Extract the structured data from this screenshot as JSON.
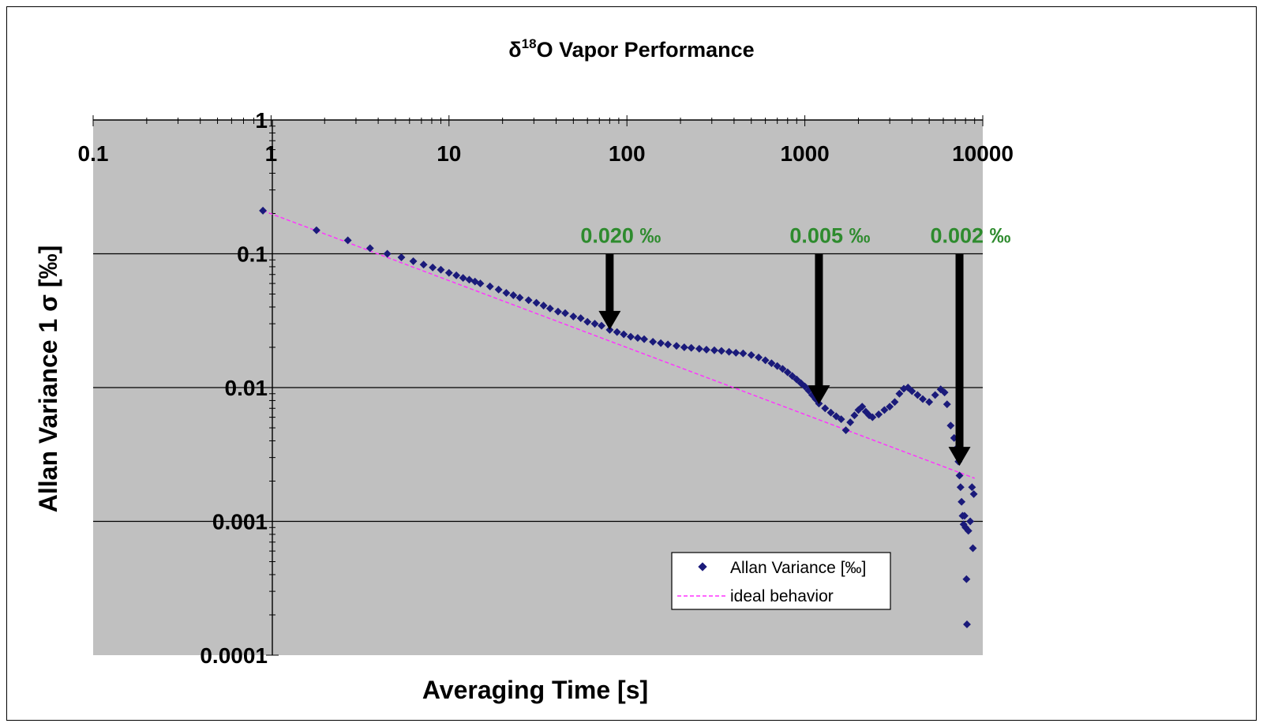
{
  "chart_data": {
    "type": "scatter",
    "title": {
      "prefix": "δ",
      "superscript": "18",
      "suffix": "O Vapor Performance"
    },
    "xlabel": "Averaging Time [s]",
    "ylabel": "Allan Variance 1 σ [‰]",
    "x_scale": "log",
    "y_scale": "log",
    "xlim": [
      0.1,
      10000
    ],
    "ylim": [
      0.0001,
      1
    ],
    "x_ticks": [
      {
        "value": 0.1,
        "label": "0.1"
      },
      {
        "value": 1,
        "label": "1"
      },
      {
        "value": 10,
        "label": "10"
      },
      {
        "value": 100,
        "label": "100"
      },
      {
        "value": 1000,
        "label": "1000"
      },
      {
        "value": 10000,
        "label": "10000"
      }
    ],
    "y_ticks": [
      {
        "value": 1,
        "label": "1"
      },
      {
        "value": 0.1,
        "label": "0.1"
      },
      {
        "value": 0.01,
        "label": "0.01"
      },
      {
        "value": 0.001,
        "label": "0.001"
      },
      {
        "value": 0.0001,
        "label": "0.0001"
      }
    ],
    "grid": "horizontal major",
    "plot_background": "#c0c0c0",
    "legend_position": "bottom-right",
    "series": [
      {
        "name": "Allan Variance [‰]",
        "kind": "scatter",
        "marker": "diamond",
        "color": "#1a1a7a",
        "points": [
          [
            0.9,
            0.21
          ],
          [
            1.8,
            0.15
          ],
          [
            2.7,
            0.126
          ],
          [
            3.6,
            0.11
          ],
          [
            4.5,
            0.1
          ],
          [
            5.4,
            0.094
          ],
          [
            6.3,
            0.088
          ],
          [
            7.2,
            0.083
          ],
          [
            8.1,
            0.079
          ],
          [
            9.0,
            0.076
          ],
          [
            10,
            0.072
          ],
          [
            11,
            0.069
          ],
          [
            12,
            0.066
          ],
          [
            13,
            0.064
          ],
          [
            14,
            0.062
          ],
          [
            15,
            0.06
          ],
          [
            17,
            0.057
          ],
          [
            19,
            0.054
          ],
          [
            21,
            0.051
          ],
          [
            23,
            0.049
          ],
          [
            25,
            0.047
          ],
          [
            28,
            0.045
          ],
          [
            31,
            0.043
          ],
          [
            34,
            0.041
          ],
          [
            37,
            0.039
          ],
          [
            41,
            0.037
          ],
          [
            45,
            0.036
          ],
          [
            50,
            0.034
          ],
          [
            55,
            0.033
          ],
          [
            60,
            0.031
          ],
          [
            66,
            0.03
          ],
          [
            72,
            0.029
          ],
          [
            80,
            0.027
          ],
          [
            88,
            0.026
          ],
          [
            96,
            0.025
          ],
          [
            105,
            0.024
          ],
          [
            115,
            0.0235
          ],
          [
            125,
            0.023
          ],
          [
            140,
            0.022
          ],
          [
            155,
            0.0215
          ],
          [
            170,
            0.021
          ],
          [
            190,
            0.0205
          ],
          [
            210,
            0.02
          ],
          [
            230,
            0.0198
          ],
          [
            255,
            0.0195
          ],
          [
            280,
            0.0192
          ],
          [
            310,
            0.019
          ],
          [
            340,
            0.0188
          ],
          [
            375,
            0.0185
          ],
          [
            410,
            0.0182
          ],
          [
            450,
            0.018
          ],
          [
            500,
            0.0175
          ],
          [
            550,
            0.0168
          ],
          [
            600,
            0.016
          ],
          [
            650,
            0.0152
          ],
          [
            700,
            0.0145
          ],
          [
            750,
            0.0138
          ],
          [
            800,
            0.013
          ],
          [
            850,
            0.0122
          ],
          [
            900,
            0.0115
          ],
          [
            950,
            0.0108
          ],
          [
            1000,
            0.0102
          ],
          [
            1050,
            0.0095
          ],
          [
            1100,
            0.0088
          ],
          [
            1150,
            0.0082
          ],
          [
            1200,
            0.0076
          ],
          [
            1300,
            0.007
          ],
          [
            1400,
            0.0065
          ],
          [
            1500,
            0.0061
          ],
          [
            1600,
            0.0058
          ],
          [
            1700,
            0.0048
          ],
          [
            1800,
            0.0055
          ],
          [
            1900,
            0.0062
          ],
          [
            2000,
            0.0068
          ],
          [
            2100,
            0.0072
          ],
          [
            2200,
            0.0066
          ],
          [
            2300,
            0.0062
          ],
          [
            2400,
            0.006
          ],
          [
            2600,
            0.0063
          ],
          [
            2800,
            0.0068
          ],
          [
            3000,
            0.0072
          ],
          [
            3200,
            0.0078
          ],
          [
            3400,
            0.009
          ],
          [
            3600,
            0.0098
          ],
          [
            3800,
            0.01
          ],
          [
            4000,
            0.0094
          ],
          [
            4300,
            0.0088
          ],
          [
            4600,
            0.0082
          ],
          [
            5000,
            0.0078
          ],
          [
            5400,
            0.0088
          ],
          [
            5800,
            0.0097
          ],
          [
            6100,
            0.0092
          ],
          [
            6300,
            0.0075
          ],
          [
            6600,
            0.0052
          ],
          [
            6900,
            0.0042
          ],
          [
            7100,
            0.0035
          ],
          [
            7300,
            0.0028
          ],
          [
            7400,
            0.0022
          ],
          [
            7500,
            0.0018
          ],
          [
            7600,
            0.0014
          ],
          [
            7700,
            0.0011
          ],
          [
            7800,
            0.00095
          ],
          [
            7900,
            0.0011
          ],
          [
            8000,
            0.0009
          ],
          [
            8100,
            0.00037
          ],
          [
            8150,
            0.00017
          ],
          [
            8300,
            0.00085
          ],
          [
            8500,
            0.001
          ],
          [
            8700,
            0.0018
          ],
          [
            8800,
            0.00063
          ],
          [
            8900,
            0.0016
          ]
        ]
      },
      {
        "name": "ideal behavior",
        "kind": "line",
        "style": "dashed",
        "color": "#ff33ff",
        "points": [
          [
            0.9,
            0.21
          ],
          [
            9000,
            0.0021
          ]
        ]
      }
    ],
    "annotations": [
      {
        "text": "0.020 ‰",
        "color": "#2e8b2e",
        "arrow_x": 80,
        "arrow_y_top": 0.1,
        "arrow_y_bottom": 0.027
      },
      {
        "text": "0.005 ‰",
        "color": "#2e8b2e",
        "arrow_x": 1200,
        "arrow_y_top": 0.1,
        "arrow_y_bottom": 0.0075
      },
      {
        "text": "0.002 ‰",
        "color": "#2e8b2e",
        "arrow_x": 7400,
        "arrow_y_top": 0.1,
        "arrow_y_bottom": 0.0026
      }
    ]
  }
}
